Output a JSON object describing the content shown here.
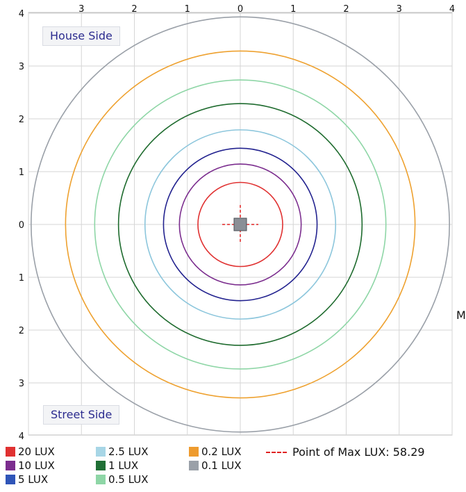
{
  "chart_data": {
    "type": "contour",
    "x_ticks": [
      "3",
      "2",
      "1",
      "0",
      "1",
      "2",
      "3",
      "4"
    ],
    "y_ticks": [
      "4",
      "3",
      "2",
      "1",
      "0",
      "1",
      "2",
      "3",
      "4"
    ],
    "xlim": [
      -4,
      4
    ],
    "ylim": [
      -4,
      4
    ],
    "grid": true,
    "contours": [
      {
        "name": "20 LUX",
        "color": "#e03131",
        "radius": 0.8
      },
      {
        "name": "10 LUX",
        "color": "#7b2d8e",
        "radius": 1.15
      },
      {
        "name": "5 LUX",
        "color": "#22228f",
        "radius": 1.45
      },
      {
        "name": "2.5 LUX",
        "color": "#8cc6dc",
        "radius": 1.8
      },
      {
        "name": "1 LUX",
        "color": "#1e6b2e",
        "radius": 2.3
      },
      {
        "name": "0.5 LUX",
        "color": "#8ed6a6",
        "radius": 2.75
      },
      {
        "name": "0.2 LUX",
        "color": "#eea12f",
        "radius": 3.3
      },
      {
        "name": "0.1 LUX",
        "color": "#9aa0a8",
        "radius": 3.95
      }
    ],
    "max_point": {
      "x": 0,
      "y": 0,
      "label": "Point of Max LUX: 58.29"
    }
  },
  "labels": {
    "house_side": "House Side",
    "street_side": "Street Side",
    "right_edge": "M"
  },
  "legend": [
    {
      "label": "20 LUX",
      "color": "#e03131"
    },
    {
      "label": "10 LUX",
      "color": "#7b2d8e"
    },
    {
      "label": "5 LUX",
      "color": "#2f55b8"
    },
    {
      "label": "2.5 LUX",
      "color": "#a7d6e6"
    },
    {
      "label": "1 LUX",
      "color": "#1f6f35"
    },
    {
      "label": "0.5 LUX",
      "color": "#8ed6a6"
    },
    {
      "label": "0.2 LUX",
      "color": "#ee9b2e"
    },
    {
      "label": "0.1 LUX",
      "color": "#9aa0a8"
    }
  ],
  "max_label": "Point of Max LUX: 58.29"
}
